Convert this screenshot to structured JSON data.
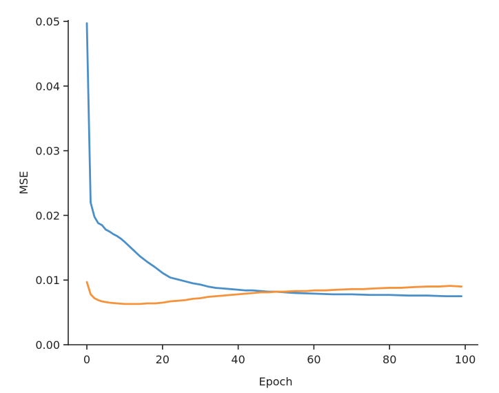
{
  "chart_data": {
    "type": "line",
    "title": "",
    "xlabel": "Epoch",
    "ylabel": "MSE",
    "xlim": [
      -5,
      103
    ],
    "ylim": [
      0,
      0.05
    ],
    "xticks": [
      0,
      20,
      40,
      60,
      80,
      100
    ],
    "xtick_labels": [
      "0",
      "20",
      "40",
      "60",
      "80",
      "100"
    ],
    "yticks": [
      0,
      0.01,
      0.02,
      0.03,
      0.04,
      0.05
    ],
    "ytick_labels": [
      "0.00",
      "0.01",
      "0.02",
      "0.03",
      "0.04",
      "0.05"
    ],
    "grid": false,
    "legend": "none",
    "series": [
      {
        "color": "#4a8fc8",
        "x": [
          0,
          1,
          2,
          3,
          4,
          5,
          6,
          7,
          8,
          9,
          10,
          12,
          14,
          16,
          18,
          20,
          22,
          24,
          26,
          28,
          30,
          32,
          34,
          36,
          38,
          40,
          42,
          44,
          46,
          48,
          50,
          55,
          60,
          65,
          70,
          75,
          80,
          85,
          90,
          95,
          99
        ],
        "y": [
          0.0497,
          0.022,
          0.0198,
          0.0188,
          0.0185,
          0.0178,
          0.0175,
          0.0171,
          0.0168,
          0.0164,
          0.0159,
          0.0148,
          0.0137,
          0.0128,
          0.012,
          0.0111,
          0.0104,
          0.0101,
          0.0098,
          0.0095,
          0.0093,
          0.009,
          0.0088,
          0.0087,
          0.0086,
          0.0085,
          0.0084,
          0.0084,
          0.0083,
          0.0082,
          0.0082,
          0.008,
          0.0079,
          0.0078,
          0.0078,
          0.0077,
          0.0077,
          0.0076,
          0.0076,
          0.0075,
          0.0075
        ]
      },
      {
        "color": "#f5923a",
        "x": [
          0,
          1,
          2,
          3,
          4,
          5,
          6,
          8,
          10,
          12,
          14,
          16,
          18,
          20,
          22,
          24,
          26,
          28,
          30,
          32,
          34,
          36,
          38,
          40,
          42,
          44,
          46,
          48,
          50,
          52,
          55,
          58,
          60,
          63,
          66,
          70,
          73,
          76,
          80,
          83,
          86,
          90,
          93,
          96,
          99
        ],
        "y": [
          0.0097,
          0.0078,
          0.0072,
          0.0069,
          0.0067,
          0.0066,
          0.0065,
          0.0064,
          0.0063,
          0.0063,
          0.0063,
          0.0064,
          0.0064,
          0.0065,
          0.0067,
          0.0068,
          0.0069,
          0.0071,
          0.0072,
          0.0074,
          0.0075,
          0.0076,
          0.0077,
          0.0078,
          0.0079,
          0.008,
          0.0081,
          0.0081,
          0.0082,
          0.0082,
          0.0083,
          0.0083,
          0.0084,
          0.0084,
          0.0085,
          0.0086,
          0.0086,
          0.0087,
          0.0088,
          0.0088,
          0.0089,
          0.009,
          0.009,
          0.0091,
          0.009
        ]
      }
    ]
  }
}
